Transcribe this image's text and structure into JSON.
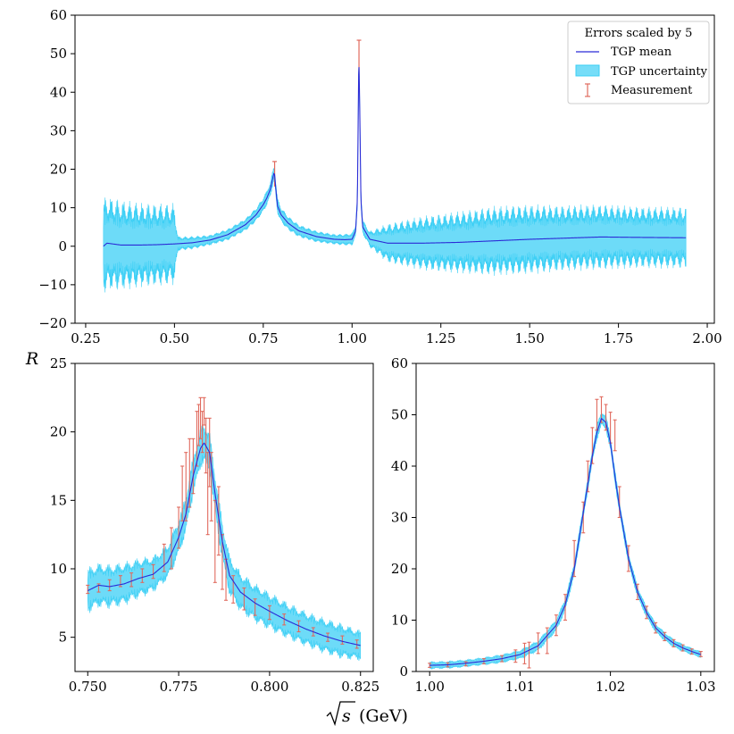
{
  "figure": {
    "ylabel": "R",
    "xlabel_sqrt": "s",
    "xlabel_unit": "(GeV)"
  },
  "colors": {
    "band": "#3ccff5",
    "mean": "#2b2bd6",
    "measurement": "#e06a5e"
  },
  "legend": {
    "title": "Errors scaled by 5",
    "entries": [
      "TGP mean",
      "TGP uncertainty",
      "Measurement"
    ],
    "placement": "top-right"
  },
  "chart_data": [
    {
      "type": "line",
      "panel": "full-range",
      "xlim": [
        0.22,
        2.02
      ],
      "ylim": [
        -20,
        60
      ],
      "xticks": [
        0.25,
        0.5,
        0.75,
        1.0,
        1.25,
        1.5,
        1.75,
        2.0
      ],
      "xtick_labels": [
        "0.25",
        "0.50",
        "0.75",
        "1.00",
        "1.25",
        "1.50",
        "1.75",
        "2.00"
      ],
      "yticks": [
        -20,
        -10,
        0,
        10,
        20,
        30,
        40,
        50,
        60
      ],
      "ytick_labels": [
        "−20",
        "−10",
        "0",
        "10",
        "20",
        "30",
        "40",
        "50",
        "60"
      ],
      "mean_curve": {
        "x": [
          0.3,
          0.31,
          0.35,
          0.4,
          0.45,
          0.5,
          0.55,
          0.6,
          0.65,
          0.7,
          0.73,
          0.75,
          0.76,
          0.77,
          0.775,
          0.78,
          0.782,
          0.785,
          0.79,
          0.8,
          0.82,
          0.85,
          0.9,
          0.95,
          0.98,
          1.0,
          1.01,
          1.015,
          1.019,
          1.021,
          1.025,
          1.03,
          1.05,
          1.1,
          1.2,
          1.3,
          1.4,
          1.5,
          1.6,
          1.7,
          1.8,
          1.94
        ],
        "y": [
          0.0,
          0.8,
          0.3,
          0.3,
          0.4,
          0.6,
          0.9,
          1.6,
          3.0,
          5.6,
          8.2,
          10.8,
          12.5,
          14.8,
          17.0,
          19.0,
          18.5,
          15.2,
          10.5,
          8.2,
          6.0,
          4.0,
          2.5,
          1.8,
          1.7,
          1.8,
          4.0,
          12.0,
          49.0,
          40.0,
          12.0,
          5.0,
          1.8,
          0.8,
          0.8,
          1.0,
          1.4,
          1.8,
          2.1,
          2.4,
          2.3,
          2.2
        ]
      },
      "uncertainty_envelope": {
        "x": [
          0.3,
          0.4,
          0.5,
          0.51,
          0.6,
          0.7,
          0.78,
          0.85,
          0.95,
          1.0,
          1.05,
          1.1,
          1.2,
          1.3,
          1.4,
          1.5,
          1.6,
          1.7,
          1.8,
          1.94
        ],
        "halfwidth": [
          12.5,
          11.0,
          10.5,
          1.8,
          1.2,
          1.5,
          2.0,
          1.5,
          1.2,
          1.5,
          2.0,
          5.0,
          7.0,
          8.0,
          9.0,
          9.0,
          8.5,
          8.5,
          8.0,
          8.0
        ]
      },
      "measurement_peaks": [
        {
          "x": 0.782,
          "y_top": 22.0
        },
        {
          "x": 1.0195,
          "y_top": 53.5
        }
      ]
    },
    {
      "type": "line",
      "panel": "omega-zoom",
      "xlim": [
        0.7465,
        0.8285
      ],
      "ylim": [
        2.5,
        25
      ],
      "xticks": [
        0.75,
        0.775,
        0.8,
        0.825
      ],
      "xtick_labels": [
        "0.750",
        "0.775",
        "0.800",
        "0.825"
      ],
      "yticks": [
        5,
        10,
        15,
        20,
        25
      ],
      "ytick_labels": [
        "5",
        "10",
        "15",
        "20",
        "25"
      ],
      "mean_curve": {
        "x": [
          0.75,
          0.753,
          0.756,
          0.76,
          0.764,
          0.768,
          0.772,
          0.775,
          0.777,
          0.779,
          0.781,
          0.782,
          0.7835,
          0.785,
          0.787,
          0.789,
          0.792,
          0.796,
          0.8,
          0.805,
          0.81,
          0.815,
          0.82,
          0.825
        ],
        "y": [
          8.4,
          8.8,
          8.7,
          8.9,
          9.3,
          9.6,
          10.5,
          12.3,
          14.0,
          16.8,
          18.8,
          19.2,
          18.5,
          15.5,
          12.0,
          9.5,
          8.3,
          7.5,
          6.9,
          6.2,
          5.6,
          5.1,
          4.7,
          4.4
        ]
      },
      "uncertainty_envelope": {
        "x": [
          0.75,
          0.76,
          0.77,
          0.775,
          0.78,
          0.785,
          0.79,
          0.8,
          0.81,
          0.82,
          0.825
        ],
        "halfwidth": [
          1.6,
          1.5,
          1.2,
          1.3,
          1.4,
          1.5,
          1.4,
          1.3,
          1.2,
          1.2,
          1.0
        ]
      },
      "measurements": {
        "x": [
          0.75,
          0.753,
          0.756,
          0.759,
          0.762,
          0.765,
          0.768,
          0.771,
          0.773,
          0.775,
          0.776,
          0.777,
          0.778,
          0.779,
          0.78,
          0.7805,
          0.781,
          0.7815,
          0.782,
          0.7825,
          0.783,
          0.7835,
          0.784,
          0.785,
          0.786,
          0.787,
          0.788,
          0.79,
          0.793,
          0.796,
          0.8,
          0.804,
          0.808,
          0.812,
          0.816,
          0.82,
          0.824
        ],
        "y": [
          8.5,
          8.6,
          8.8,
          9.1,
          9.2,
          9.5,
          9.8,
          10.8,
          11.5,
          13.0,
          15.5,
          16.0,
          17.0,
          17.5,
          19.5,
          20.5,
          21.0,
          20.0,
          21.5,
          19.0,
          15.5,
          18.5,
          16.0,
          12.0,
          13.5,
          10.5,
          9.2,
          8.5,
          7.8,
          7.2,
          6.8,
          6.3,
          5.8,
          5.4,
          5.0,
          4.8,
          4.5
        ],
        "err": [
          0.3,
          0.3,
          0.4,
          0.4,
          0.5,
          0.5,
          0.5,
          1.0,
          1.5,
          1.5,
          2.0,
          2.5,
          2.5,
          2.0,
          2.0,
          1.5,
          1.5,
          1.5,
          1.0,
          2.0,
          3.0,
          2.5,
          2.5,
          3.0,
          2.5,
          2.0,
          1.5,
          1.0,
          0.8,
          0.6,
          0.5,
          0.4,
          0.4,
          0.3,
          0.3,
          0.3,
          0.3
        ]
      }
    },
    {
      "type": "line",
      "panel": "phi-zoom",
      "xlim": [
        0.9985,
        1.0315
      ],
      "ylim": [
        0,
        60
      ],
      "xticks": [
        1.0,
        1.01,
        1.02,
        1.03
      ],
      "xtick_labels": [
        "1.00",
        "1.01",
        "1.02",
        "1.03"
      ],
      "yticks": [
        0,
        10,
        20,
        30,
        40,
        50,
        60
      ],
      "ytick_labels": [
        "0",
        "10",
        "20",
        "30",
        "40",
        "50",
        "60"
      ],
      "mean_curve": {
        "x": [
          1.0,
          1.002,
          1.004,
          1.006,
          1.008,
          1.01,
          1.012,
          1.014,
          1.015,
          1.016,
          1.017,
          1.018,
          1.0185,
          1.019,
          1.0195,
          1.02,
          1.0205,
          1.021,
          1.022,
          1.023,
          1.024,
          1.025,
          1.026,
          1.027,
          1.028,
          1.029,
          1.03
        ],
        "y": [
          1.2,
          1.3,
          1.6,
          2.0,
          2.5,
          3.3,
          5.0,
          9.0,
          13.0,
          20.0,
          31.0,
          42.0,
          46.5,
          49.3,
          48.5,
          44.5,
          38.0,
          32.0,
          22.0,
          15.5,
          11.5,
          8.5,
          6.8,
          5.5,
          4.6,
          3.9,
          3.3
        ]
      },
      "uncertainty_envelope": {
        "x": [
          1.0,
          1.005,
          1.01,
          1.015,
          1.019,
          1.025,
          1.03
        ],
        "halfwidth": [
          0.6,
          0.6,
          0.8,
          1.2,
          1.5,
          0.8,
          0.5
        ]
      },
      "measurements": {
        "x": [
          1.0,
          1.002,
          1.004,
          1.006,
          1.008,
          1.0095,
          1.0105,
          1.011,
          1.012,
          1.013,
          1.014,
          1.015,
          1.016,
          1.017,
          1.0175,
          1.018,
          1.0185,
          1.019,
          1.0195,
          1.02,
          1.0205,
          1.021,
          1.022,
          1.023,
          1.024,
          1.025,
          1.026,
          1.027,
          1.028,
          1.029,
          1.03
        ],
        "y": [
          1.2,
          1.3,
          1.5,
          2.0,
          2.5,
          3.0,
          3.5,
          3.2,
          5.5,
          6.0,
          9.0,
          12.5,
          22.0,
          30.0,
          38.0,
          44.0,
          50.0,
          51.0,
          49.5,
          47.5,
          46.0,
          33.0,
          22.0,
          15.5,
          11.5,
          8.5,
          6.8,
          5.5,
          4.6,
          3.9,
          3.4
        ],
        "err": [
          0.4,
          0.4,
          0.4,
          0.5,
          0.6,
          1.2,
          2.0,
          2.5,
          2.0,
          2.5,
          2.0,
          2.5,
          3.5,
          3.0,
          3.0,
          3.5,
          3.0,
          2.5,
          2.5,
          3.0,
          3.0,
          3.0,
          2.5,
          1.5,
          1.2,
          1.0,
          0.8,
          0.7,
          0.6,
          0.5,
          0.5
        ]
      }
    }
  ]
}
